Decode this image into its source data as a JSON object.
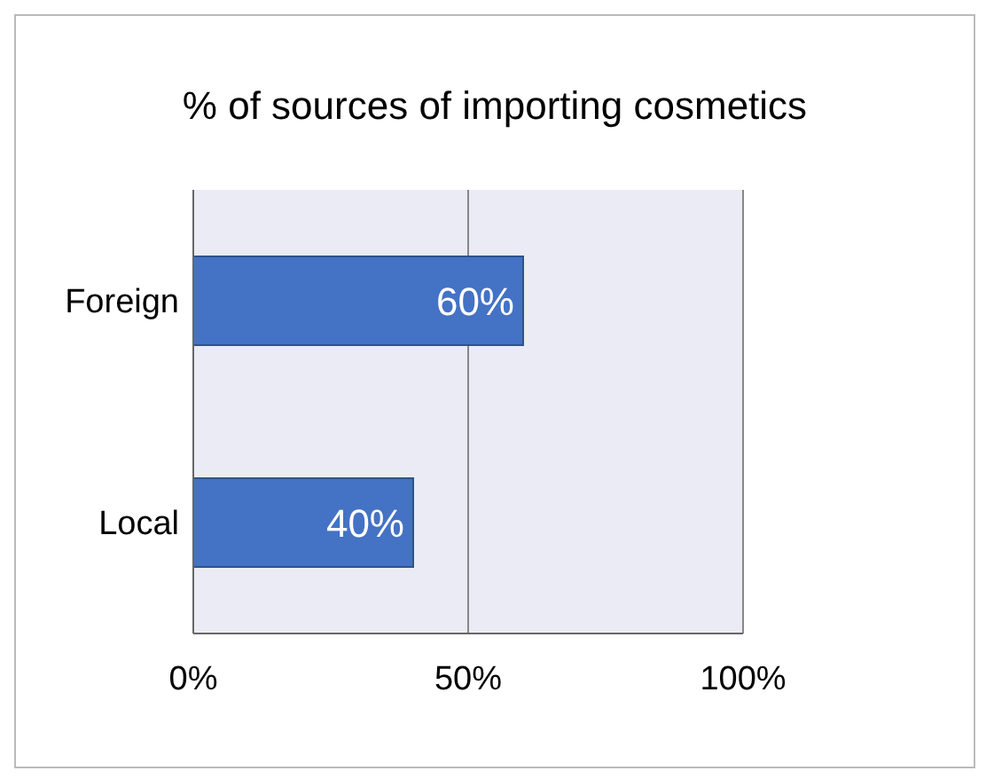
{
  "chart_data": {
    "type": "bar",
    "orientation": "horizontal",
    "title": "% of sources of importing cosmetics",
    "categories": [
      "Foreign",
      "Local"
    ],
    "values": [
      60,
      40
    ],
    "color": "#4472c4",
    "value_labels": [
      "60%",
      "40%"
    ],
    "xlim": [
      0,
      100
    ],
    "xticks": [
      {
        "value": 0,
        "label": "0%"
      },
      {
        "value": 50,
        "label": "50%"
      },
      {
        "value": 100,
        "label": "100%"
      }
    ],
    "grid": "x"
  }
}
